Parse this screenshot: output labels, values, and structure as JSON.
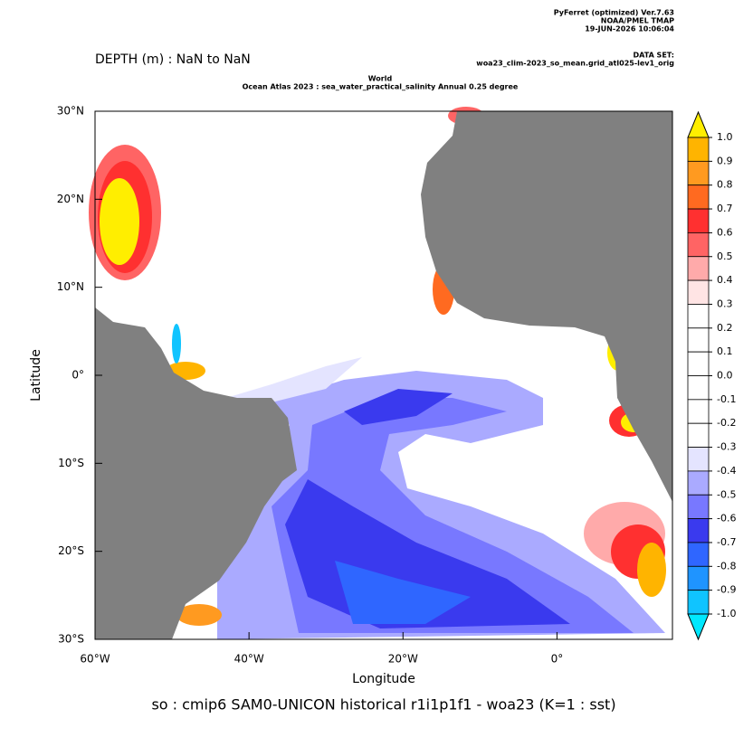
{
  "header": {
    "software": "PyFerret (optimized) Ver.7.63",
    "org": "NOAA/PMEL TMAP",
    "date": "19-JUN-2026 10:06:04",
    "dataset_label": "DATA SET:",
    "dataset": "woa23_clim-2023_so_mean.grid_atl025-lev1_orig",
    "depth": "DEPTH (m) : NaN to NaN",
    "subtitle_1": "World",
    "subtitle_2": "Ocean Atlas 2023 : sea_water_practical_salinity Annual  0.25 degree"
  },
  "map": {
    "xlabel": "Longitude",
    "ylabel": "Latitude",
    "xlim": [
      -60,
      15
    ],
    "ylim": [
      -30,
      30
    ],
    "xticks": [
      {
        "value": -60,
        "label": "60°W"
      },
      {
        "value": -40,
        "label": "40°W"
      },
      {
        "value": -20,
        "label": "20°W"
      },
      {
        "value": 0,
        "label": "0°"
      }
    ],
    "yticks": [
      {
        "value": 30,
        "label": "30°N"
      },
      {
        "value": 20,
        "label": "20°N"
      },
      {
        "value": 10,
        "label": "10°N"
      },
      {
        "value": 0,
        "label": "0°"
      },
      {
        "value": -10,
        "label": "10°S"
      },
      {
        "value": -20,
        "label": "20°S"
      },
      {
        "value": -30,
        "label": "30°S"
      }
    ],
    "land_color": "#808080"
  },
  "colorbar": {
    "levels": [
      {
        "value": 1,
        "label": "1.0"
      },
      0.9,
      0.8,
      0.7,
      0.6,
      0.5,
      0.4,
      0.3,
      0.2,
      0.1,
      {
        "value": 0,
        "label": "0.0"
      },
      -0.1,
      -0.2,
      -0.3,
      -0.4,
      -0.5,
      -0.6,
      -0.7,
      -0.8,
      -0.9,
      {
        "value": -1,
        "label": "-1.0"
      }
    ],
    "colors": [
      "#ffee00",
      "#ffb400",
      "#ff9a20",
      "#ff6a20",
      "#ff3030",
      "#ff6464",
      "#ffaaaa",
      "#ffe4e4",
      "#ffffff",
      "#ffffff",
      "#ffffff",
      "#ffffff",
      "#ffffff",
      "#ffffff",
      "#e4e4ff",
      "#aaaaff",
      "#7878ff",
      "#3a3aee",
      "#2f66ff",
      "#1f94ff",
      "#10c4ff",
      "#00e8ff"
    ]
  },
  "footer": "so : cmip6 SAM0-UNICON historical r1i1p1f1 - woa23  (K=1 : sst)"
}
